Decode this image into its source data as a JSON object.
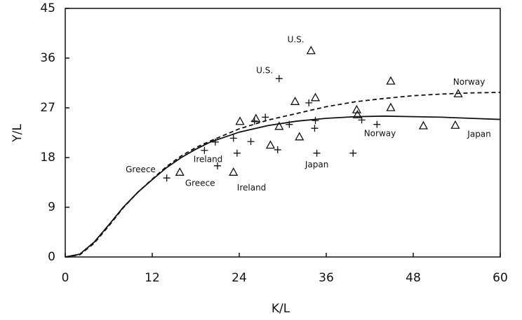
{
  "chart_data": {
    "type": "scatter",
    "xlabel": "K/L",
    "ylabel": "Y/L",
    "xlim": [
      0,
      60
    ],
    "ylim": [
      0,
      45
    ],
    "xticks": [
      0,
      12,
      24,
      36,
      48,
      60
    ],
    "yticks": [
      0,
      9,
      18,
      27,
      36,
      45
    ],
    "color": "#111111",
    "series": [
      {
        "marker": "triangle",
        "x": [
          33.9,
          44.9,
          54.2,
          34.5,
          31.7,
          26.3,
          24.1,
          40.2,
          44.9,
          29.5,
          32.3,
          28.3,
          49.4,
          53.8,
          40.3,
          23.2,
          15.8
        ],
        "y": [
          37.3,
          31.8,
          29.5,
          28.8,
          28.1,
          25.0,
          24.5,
          26.6,
          27.0,
          23.6,
          21.7,
          20.2,
          23.7,
          23.8,
          25.7,
          15.3,
          15.3
        ]
      },
      {
        "marker": "plus",
        "x": [
          29.5,
          33.6,
          27.6,
          26.1,
          30.9,
          34.5,
          34.4,
          40.9,
          43.0,
          23.2,
          20.7,
          25.6,
          19.2,
          29.3,
          34.7,
          39.7,
          23.7,
          21.0,
          14.0
        ],
        "y": [
          32.3,
          27.9,
          25.3,
          24.6,
          24.0,
          24.7,
          23.3,
          24.8,
          24.0,
          21.5,
          20.8,
          20.9,
          19.3,
          19.4,
          18.8,
          18.8,
          18.8,
          16.5,
          14.3
        ]
      }
    ],
    "lines": [
      {
        "style": "solid",
        "x": [
          0,
          2,
          4,
          6,
          8,
          10,
          12,
          14,
          16,
          18,
          20,
          24,
          28,
          32,
          36,
          40,
          44,
          48,
          52,
          56,
          60
        ],
        "y": [
          0,
          0.5,
          2.7,
          5.8,
          9.0,
          11.7,
          14.0,
          16.2,
          18.0,
          19.5,
          20.8,
          22.6,
          23.8,
          24.6,
          25.1,
          25.4,
          25.5,
          25.4,
          25.3,
          25.1,
          24.9
        ]
      },
      {
        "style": "dashed",
        "x": [
          0,
          2,
          4,
          6,
          8,
          10,
          12,
          14,
          16,
          18,
          20,
          24,
          28,
          32,
          36,
          40,
          44,
          48,
          52,
          56,
          60
        ],
        "y": [
          0,
          0.4,
          2.5,
          5.6,
          8.9,
          11.7,
          14.1,
          16.4,
          18.3,
          19.8,
          21.0,
          23.2,
          24.8,
          26.0,
          27.2,
          28.1,
          28.7,
          29.2,
          29.5,
          29.7,
          29.8
        ]
      }
    ],
    "annotations": [
      {
        "text": "U.S.",
        "x": 31.8,
        "y": 39.3
      },
      {
        "text": "U.S.",
        "x": 27.5,
        "y": 33.7
      },
      {
        "text": "Norway",
        "x": 55.7,
        "y": 31.6
      },
      {
        "text": "Norway",
        "x": 43.4,
        "y": 22.3
      },
      {
        "text": "Japan",
        "x": 57.1,
        "y": 22.2
      },
      {
        "text": "Japan",
        "x": 34.7,
        "y": 16.7
      },
      {
        "text": "Ireland",
        "x": 19.7,
        "y": 17.6
      },
      {
        "text": "Ireland",
        "x": 25.7,
        "y": 12.5
      },
      {
        "text": "Greece",
        "x": 10.4,
        "y": 15.8
      },
      {
        "text": "Greece",
        "x": 18.6,
        "y": 13.3
      }
    ]
  }
}
